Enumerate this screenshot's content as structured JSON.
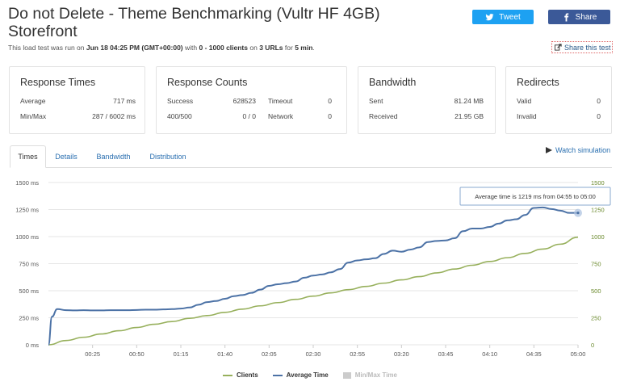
{
  "header": {
    "title": "Do not Delete - Theme Benchmarking (Vultr HF 4GB) Storefront",
    "subtitle_prefix": "This load test was run on",
    "subtitle_date": "Jun 18 04:25 PM (GMT+00:00)",
    "subtitle_mid1": "with",
    "subtitle_clients": "0 - 1000 clients",
    "subtitle_mid2": "on",
    "subtitle_urls": "3 URLs",
    "subtitle_mid3": "for",
    "subtitle_duration": "5 min",
    "subtitle_end": ".",
    "tweet_label": "Tweet",
    "share_label": "Share",
    "share_test_label": "Share this test",
    "tweet_color": "#1da1f2",
    "share_color": "#3b5998"
  },
  "cards": {
    "response_times": {
      "title": "Response Times",
      "average_label": "Average",
      "average_value": "717 ms",
      "minmax_label": "Min/Max",
      "minmax_value": "287 / 6002 ms"
    },
    "response_counts": {
      "title": "Response Counts",
      "success_label": "Success",
      "success_value": "628523",
      "timeout_label": "Timeout",
      "timeout_value": "0",
      "err_label": "400/500",
      "err_value": "0 / 0",
      "network_label": "Network",
      "network_value": "0"
    },
    "bandwidth": {
      "title": "Bandwidth",
      "sent_label": "Sent",
      "sent_value": "81.24 MB",
      "received_label": "Received",
      "received_value": "21.95 GB"
    },
    "redirects": {
      "title": "Redirects",
      "valid_label": "Valid",
      "valid_value": "0",
      "invalid_label": "Invalid",
      "invalid_value": "0"
    }
  },
  "tabs": [
    {
      "label": "Times",
      "active": true
    },
    {
      "label": "Details",
      "active": false
    },
    {
      "label": "Bandwidth",
      "active": false
    },
    {
      "label": "Distribution",
      "active": false
    }
  ],
  "watch_label": "Watch simulation",
  "tooltip": "Average time is 1219 ms from 04:55 to 05:00",
  "legend": {
    "clients": "Clients",
    "average": "Average Time",
    "minmax": "Min/Max Time"
  },
  "colors": {
    "clients": "#97b05c",
    "average": "#4c72a6",
    "minmax": "#cccccc",
    "grid": "#e6e6e6"
  },
  "chart_data": {
    "type": "line",
    "x_ticks": [
      "00:25",
      "00:50",
      "01:15",
      "01:40",
      "02:05",
      "02:30",
      "02:55",
      "03:20",
      "03:45",
      "04:10",
      "04:35",
      "05:00"
    ],
    "x_tick_seconds": [
      25,
      50,
      75,
      100,
      125,
      150,
      175,
      200,
      225,
      250,
      275,
      300
    ],
    "xlim_seconds": [
      0,
      300
    ],
    "y_left_ticks": [
      "0 ms",
      "250 ms",
      "500 ms",
      "750 ms",
      "1000 ms",
      "1250 ms",
      "1500 ms"
    ],
    "y_right_ticks": [
      "0",
      "250",
      "500",
      "750",
      "1000",
      "1250",
      "1500"
    ],
    "y_tick_values": [
      0,
      250,
      500,
      750,
      1000,
      1250,
      1500
    ],
    "ylim": [
      0,
      1500
    ],
    "grid": true,
    "series": [
      {
        "name": "Clients",
        "x_seconds": [
          0,
          10,
          20,
          30,
          40,
          50,
          60,
          70,
          80,
          90,
          100,
          110,
          120,
          130,
          140,
          150,
          160,
          170,
          180,
          190,
          200,
          210,
          220,
          230,
          240,
          250,
          260,
          270,
          280,
          290,
          300
        ],
        "values": [
          0,
          40,
          70,
          100,
          130,
          160,
          190,
          215,
          245,
          270,
          300,
          330,
          360,
          390,
          420,
          450,
          480,
          510,
          540,
          570,
          600,
          630,
          665,
          700,
          735,
          770,
          805,
          845,
          885,
          930,
          995
        ]
      },
      {
        "name": "Average Time",
        "x_seconds": [
          0,
          2,
          5,
          10,
          15,
          20,
          25,
          30,
          35,
          40,
          45,
          50,
          55,
          60,
          65,
          70,
          75,
          80,
          85,
          90,
          95,
          100,
          105,
          110,
          115,
          120,
          125,
          130,
          135,
          140,
          145,
          150,
          155,
          160,
          165,
          170,
          175,
          180,
          185,
          190,
          195,
          200,
          205,
          210,
          215,
          220,
          225,
          230,
          235,
          240,
          245,
          250,
          255,
          260,
          265,
          270,
          275,
          280,
          285,
          290,
          295,
          300
        ],
        "values": [
          0,
          260,
          330,
          320,
          318,
          320,
          318,
          318,
          320,
          320,
          320,
          322,
          325,
          325,
          327,
          330,
          335,
          345,
          370,
          395,
          405,
          425,
          450,
          460,
          480,
          510,
          545,
          560,
          570,
          585,
          620,
          640,
          650,
          670,
          700,
          760,
          780,
          790,
          800,
          840,
          870,
          860,
          880,
          900,
          950,
          960,
          965,
          985,
          1050,
          1075,
          1075,
          1090,
          1120,
          1150,
          1160,
          1200,
          1265,
          1270,
          1255,
          1240,
          1219,
          1219
        ]
      }
    ]
  }
}
